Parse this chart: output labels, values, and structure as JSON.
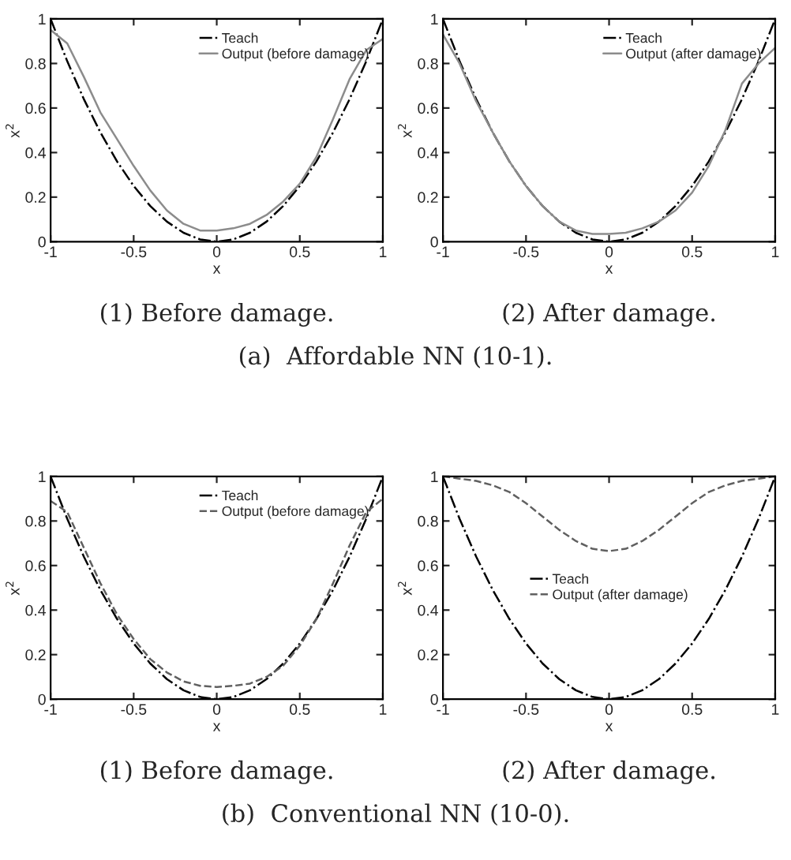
{
  "chart_data": [
    {
      "type": "line",
      "x": [
        -1,
        -0.9,
        -0.8,
        -0.7,
        -0.6,
        -0.5,
        -0.4,
        -0.3,
        -0.2,
        -0.1,
        0,
        0.1,
        0.2,
        0.3,
        0.4,
        0.5,
        0.6,
        0.7,
        0.8,
        0.9,
        1
      ],
      "xlabel": "x",
      "ylabel": "x$^{2}$",
      "xlim": [
        -1,
        1
      ],
      "ylim": [
        0,
        1
      ],
      "xticks": [
        -1,
        -0.5,
        0,
        0.5,
        1
      ],
      "yticks": [
        0,
        0.2,
        0.4,
        0.6,
        0.8,
        1
      ],
      "legend": "top right",
      "grid": false,
      "series": [
        {
          "name": "Teach",
          "color": "#000000",
          "line_style": "dashdot",
          "values": [
            1,
            0.81,
            0.64,
            0.49,
            0.36,
            0.25,
            0.16,
            0.09,
            0.04,
            0.01,
            0,
            0.01,
            0.04,
            0.09,
            0.16,
            0.25,
            0.36,
            0.49,
            0.64,
            0.81,
            1
          ]
        },
        {
          "name": "Output (before damage)",
          "color": "#8c8c8c",
          "line_style": "solid",
          "values": [
            0.95,
            0.89,
            0.74,
            0.58,
            0.46,
            0.34,
            0.23,
            0.14,
            0.08,
            0.05,
            0.05,
            0.06,
            0.08,
            0.12,
            0.18,
            0.26,
            0.38,
            0.55,
            0.73,
            0.86,
            0.91
          ]
        }
      ],
      "annotations": [
        "(1) Before damage.",
        "(a)  Affordable NN (10-1)."
      ]
    },
    {
      "type": "line",
      "x": [
        -1,
        -0.9,
        -0.8,
        -0.7,
        -0.6,
        -0.5,
        -0.4,
        -0.3,
        -0.2,
        -0.1,
        0,
        0.1,
        0.2,
        0.3,
        0.4,
        0.5,
        0.6,
        0.7,
        0.8,
        0.9,
        1
      ],
      "xlabel": "x",
      "ylabel": "x$^{2}$",
      "xlim": [
        -1,
        1
      ],
      "ylim": [
        0,
        1
      ],
      "xticks": [
        -1,
        -0.5,
        0,
        0.5,
        1
      ],
      "yticks": [
        0,
        0.2,
        0.4,
        0.6,
        0.8,
        1
      ],
      "legend": "top right",
      "grid": false,
      "series": [
        {
          "name": "Teach",
          "color": "#000000",
          "line_style": "dashdot",
          "values": [
            1,
            0.81,
            0.64,
            0.49,
            0.36,
            0.25,
            0.16,
            0.09,
            0.04,
            0.01,
            0,
            0.01,
            0.04,
            0.09,
            0.16,
            0.25,
            0.36,
            0.49,
            0.64,
            0.81,
            1
          ]
        },
        {
          "name": "Output (after damage)",
          "color": "#8c8c8c",
          "line_style": "solid",
          "values": [
            0.93,
            0.8,
            0.63,
            0.49,
            0.36,
            0.25,
            0.16,
            0.09,
            0.05,
            0.035,
            0.035,
            0.04,
            0.06,
            0.09,
            0.14,
            0.22,
            0.34,
            0.5,
            0.71,
            0.8,
            0.87
          ]
        }
      ],
      "annotations": [
        "(2) After damage."
      ]
    },
    {
      "type": "line",
      "x": [
        -1,
        -0.9,
        -0.8,
        -0.7,
        -0.6,
        -0.5,
        -0.4,
        -0.3,
        -0.2,
        -0.1,
        0,
        0.1,
        0.2,
        0.3,
        0.4,
        0.5,
        0.6,
        0.7,
        0.8,
        0.9,
        1
      ],
      "xlabel": "x",
      "ylabel": "x$^{2}$",
      "xlim": [
        -1,
        1
      ],
      "ylim": [
        0,
        1
      ],
      "xticks": [
        -1,
        -0.5,
        0,
        0.5,
        1
      ],
      "yticks": [
        0,
        0.2,
        0.4,
        0.6,
        0.8,
        1
      ],
      "legend": "top right",
      "grid": false,
      "series": [
        {
          "name": "Teach",
          "color": "#000000",
          "line_style": "dashdot",
          "values": [
            1,
            0.81,
            0.64,
            0.49,
            0.36,
            0.25,
            0.16,
            0.09,
            0.04,
            0.01,
            0,
            0.01,
            0.04,
            0.09,
            0.16,
            0.25,
            0.36,
            0.49,
            0.64,
            0.81,
            1
          ]
        },
        {
          "name": "Output (before damage)",
          "color": "#606060",
          "line_style": "dashed",
          "values": [
            0.89,
            0.84,
            0.68,
            0.52,
            0.38,
            0.27,
            0.18,
            0.12,
            0.08,
            0.06,
            0.055,
            0.06,
            0.07,
            0.1,
            0.15,
            0.24,
            0.36,
            0.52,
            0.69,
            0.84,
            0.9
          ]
        }
      ],
      "annotations": [
        "(1) Before damage.",
        "(b)  Conventional NN (10-0)."
      ]
    },
    {
      "type": "line",
      "x": [
        -1,
        -0.9,
        -0.8,
        -0.7,
        -0.6,
        -0.5,
        -0.4,
        -0.3,
        -0.2,
        -0.1,
        0,
        0.1,
        0.2,
        0.3,
        0.4,
        0.5,
        0.6,
        0.7,
        0.8,
        0.9,
        1
      ],
      "xlabel": "x",
      "ylabel": "x$^{2}$",
      "xlim": [
        -1,
        1
      ],
      "ylim": [
        0,
        1
      ],
      "xticks": [
        -1,
        -0.5,
        0,
        0.5,
        1
      ],
      "yticks": [
        0,
        0.2,
        0.4,
        0.6,
        0.8,
        1
      ],
      "legend": "center",
      "grid": false,
      "series": [
        {
          "name": "Teach",
          "color": "#000000",
          "line_style": "dashdot",
          "values": [
            1,
            0.81,
            0.64,
            0.49,
            0.36,
            0.25,
            0.16,
            0.09,
            0.04,
            0.01,
            0,
            0.01,
            0.04,
            0.09,
            0.16,
            0.25,
            0.36,
            0.49,
            0.64,
            0.81,
            1
          ]
        },
        {
          "name": "Output (after damage)",
          "color": "#606060",
          "line_style": "dashed",
          "values": [
            1,
            0.99,
            0.98,
            0.96,
            0.93,
            0.88,
            0.82,
            0.76,
            0.71,
            0.675,
            0.665,
            0.675,
            0.71,
            0.76,
            0.82,
            0.88,
            0.93,
            0.96,
            0.98,
            0.99,
            1
          ]
        }
      ],
      "annotations": [
        "(2) After damage."
      ]
    }
  ]
}
